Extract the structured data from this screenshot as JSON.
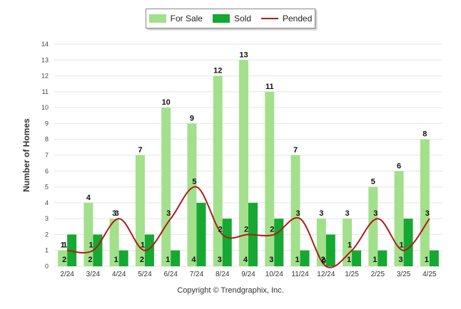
{
  "chart_data": {
    "type": "bar",
    "ylabel": "Number of Homes",
    "xlabel": "",
    "ylim": [
      0,
      14
    ],
    "yticks": [
      "0",
      "1",
      "2",
      "3",
      "4",
      "5",
      "6",
      "7",
      "8",
      "9",
      "10",
      "11",
      "12",
      "13",
      "14"
    ],
    "categories": [
      "2/24",
      "3/24",
      "4/24",
      "5/24",
      "6/24",
      "7/24",
      "8/24",
      "9/24",
      "10/24",
      "11/24",
      "12/24",
      "1/25",
      "2/25",
      "3/25",
      "4/25"
    ],
    "series": [
      {
        "name": "For Sale",
        "type": "bar",
        "color": "#a3e08c",
        "values": [
          1,
          4,
          3,
          7,
          10,
          9,
          12,
          13,
          11,
          7,
          3,
          3,
          5,
          6,
          8
        ]
      },
      {
        "name": "Sold",
        "type": "bar",
        "color": "#16a832",
        "values": [
          2,
          2,
          1,
          2,
          1,
          4,
          3,
          4,
          3,
          1,
          2,
          1,
          1,
          3,
          1
        ]
      },
      {
        "name": "Pended",
        "type": "line",
        "color": "#b21a1a",
        "values": [
          1,
          1,
          3,
          1,
          3,
          5,
          2,
          2,
          2,
          3,
          0,
          1,
          3,
          1,
          3
        ]
      }
    ],
    "grid": true,
    "legend_position": "top"
  },
  "footer": {
    "copyright": "Copyright © Trendgraphix, Inc."
  }
}
